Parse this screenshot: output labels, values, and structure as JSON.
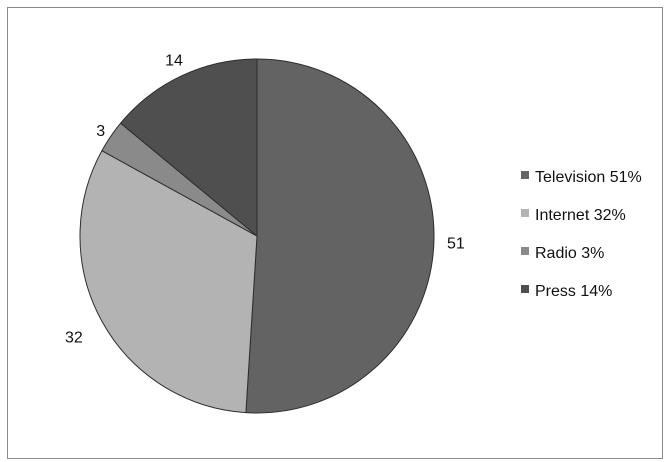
{
  "chart_data": {
    "type": "pie",
    "title": "",
    "categories": [
      "Television",
      "Internet",
      "Radio",
      "Press"
    ],
    "values": [
      51,
      32,
      3,
      14
    ],
    "data_labels": [
      "51",
      "32",
      "3",
      "14"
    ],
    "legend_labels": [
      "Television 51%",
      "Internet 32%",
      "Radio 3%",
      "Press 14%"
    ],
    "colors": [
      "#636363",
      "#b3b3b3",
      "#8a8a8a",
      "#4f4f4f"
    ],
    "legend_position": "right",
    "start_angle_degrees": 0,
    "direction": "clockwise"
  }
}
